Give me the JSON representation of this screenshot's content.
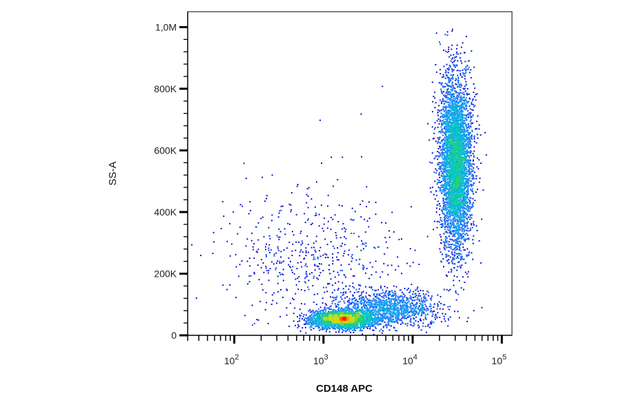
{
  "chart_data": {
    "type": "scatter",
    "subtype": "flow-cytometry-density-dot-plot",
    "xlabel": "CD148 APC",
    "ylabel": "SS-A",
    "x_scale": "log",
    "xlim": [
      30,
      130000
    ],
    "ylim": [
      0,
      1050000
    ],
    "x_ticks": [
      {
        "value": 100,
        "base": "10",
        "exp": "2"
      },
      {
        "value": 1000,
        "base": "10",
        "exp": "3"
      },
      {
        "value": 10000,
        "base": "10",
        "exp": "4"
      },
      {
        "value": 100000,
        "base": "10",
        "exp": "5"
      }
    ],
    "y_ticks": [
      {
        "value": 0,
        "label": "0"
      },
      {
        "value": 200000,
        "label": "200K"
      },
      {
        "value": 400000,
        "label": "400K"
      },
      {
        "value": 600000,
        "label": "600K"
      },
      {
        "value": 800000,
        "label": "800K"
      },
      {
        "value": 1000000,
        "label": "1,0M"
      }
    ],
    "grid": false,
    "legend": "none",
    "density_colormap": [
      "#1010d0",
      "#1e90ff",
      "#00c8c8",
      "#30d060",
      "#c8e020",
      "#ffb000",
      "#ff2000"
    ],
    "populations": [
      {
        "center": [
          1600,
          55000
        ],
        "spread": [
          0.18,
          15000
        ],
        "weight": 0.28
      },
      {
        "center": [
          5500,
          90000
        ],
        "spread": [
          0.28,
          30000
        ],
        "weight": 0.14
      },
      {
        "center": [
          30000,
          560000
        ],
        "spread": [
          0.09,
          140000
        ],
        "weight": 0.52
      },
      {
        "center": [
          800,
          250000
        ],
        "spread": [
          0.5,
          110000
        ],
        "weight": 0.06
      }
    ],
    "sparse_outliers": [
      [
        900,
        700000
      ],
      [
        1200,
        580000
      ],
      [
        1600,
        580000
      ],
      [
        4500,
        810000
      ],
      [
        1100,
        170000
      ],
      [
        2600,
        720000
      ]
    ]
  }
}
